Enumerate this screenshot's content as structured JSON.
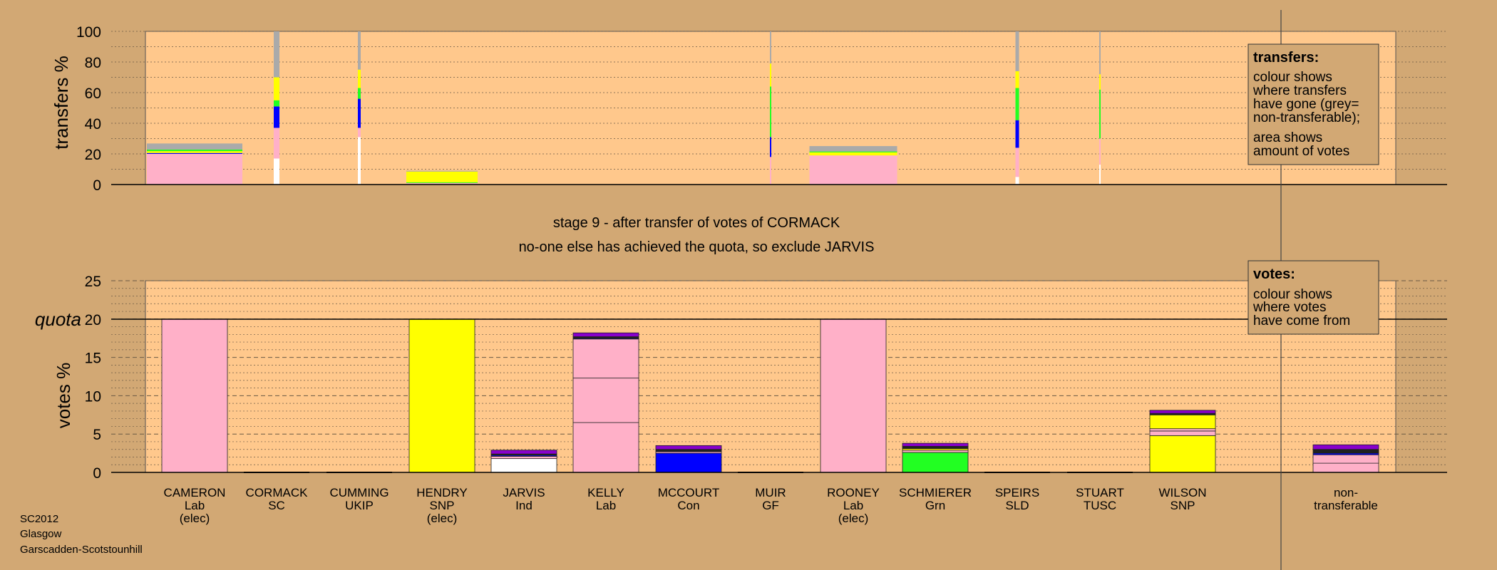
{
  "colors": {
    "background": "#d2a874",
    "panel": "#ffc88c",
    "Lab": "#ffb0c8",
    "SNP": "#ffff00",
    "Ind": "#ffffff",
    "Con": "#0000ff",
    "Grn": "#22ff22",
    "UKIP": "#8800cc",
    "LD": "#202020",
    "nontransferable": "#aaaaaa"
  },
  "header": {
    "stage": "stage 9 - after transfer of votes of CORMACK",
    "note": "no-one else has achieved the quota, so exclude JARVIS"
  },
  "footer": {
    "line1": "SC2012",
    "line2": "Glasgow",
    "line3": "Garscadden-Scotstounhill"
  },
  "legends": {
    "transfers": {
      "title": "transfers:",
      "lines": [
        "colour shows",
        "where transfers",
        "have gone (grey=",
        "non-transferable);",
        "area shows",
        "amount of votes"
      ]
    },
    "votes": {
      "title": "votes:",
      "lines": [
        "colour shows",
        "where votes",
        "have come from"
      ]
    }
  },
  "chart_data": [
    {
      "type": "bar",
      "ylabel": "transfers %",
      "ylim": [
        0,
        100
      ],
      "yticks": [
        0,
        20,
        40,
        60,
        80,
        100
      ],
      "grid": true,
      "stacked": true,
      "candidates": [
        {
          "name": "CAMERON",
          "segments": [
            {
              "color": "Lab",
              "value": 20
            },
            {
              "color": "Con",
              "value": 0.6
            },
            {
              "color": "SNP",
              "value": 1.2
            },
            {
              "color": "Grn",
              "value": 1
            },
            {
              "color": "nontransferable",
              "value": 4
            }
          ]
        },
        {
          "name": "CORMACK",
          "segments": [
            {
              "color": "Ind",
              "value": 17
            },
            {
              "color": "Lab",
              "value": 20
            },
            {
              "color": "Con",
              "value": 14
            },
            {
              "color": "Grn",
              "value": 4
            },
            {
              "color": "SNP",
              "value": 15
            },
            {
              "color": "nontransferable",
              "value": 30
            }
          ]
        },
        {
          "name": "CUMMING",
          "segments": [
            {
              "color": "Ind",
              "value": 31
            },
            {
              "color": "Lab",
              "value": 6
            },
            {
              "color": "Con",
              "value": 19
            },
            {
              "color": "Grn",
              "value": 7
            },
            {
              "color": "SNP",
              "value": 12
            },
            {
              "color": "nontransferable",
              "value": 25
            }
          ]
        },
        {
          "name": "HENDRY",
          "segments": [
            {
              "color": "Lab",
              "value": 1
            },
            {
              "color": "Grn",
              "value": 0.5
            },
            {
              "color": "SNP",
              "value": 7
            },
            {
              "color": "nontransferable",
              "value": 0.5
            }
          ]
        },
        {
          "name": "JARVIS",
          "segments": []
        },
        {
          "name": "KELLY",
          "segments": []
        },
        {
          "name": "MCCOURT",
          "segments": []
        },
        {
          "name": "MUIR",
          "segments": [
            {
              "color": "Lab",
              "value": 18
            },
            {
              "color": "Con",
              "value": 13
            },
            {
              "color": "Grn",
              "value": 33
            },
            {
              "color": "SNP",
              "value": 15
            },
            {
              "color": "nontransferable",
              "value": 21
            }
          ]
        },
        {
          "name": "ROONEY",
          "segments": [
            {
              "color": "Lab",
              "value": 19
            },
            {
              "color": "SNP",
              "value": 2
            },
            {
              "color": "Grn",
              "value": 0.6
            },
            {
              "color": "nontransferable",
              "value": 3.5
            }
          ]
        },
        {
          "name": "SCHMIERER",
          "segments": []
        },
        {
          "name": "SPEIRS",
          "segments": [
            {
              "color": "Ind",
              "value": 5
            },
            {
              "color": "Lab",
              "value": 19
            },
            {
              "color": "Con",
              "value": 18
            },
            {
              "color": "Grn",
              "value": 21
            },
            {
              "color": "SNP",
              "value": 11
            },
            {
              "color": "nontransferable",
              "value": 26
            }
          ]
        },
        {
          "name": "STUART",
          "segments": [
            {
              "color": "Ind",
              "value": 13
            },
            {
              "color": "Lab",
              "value": 17
            },
            {
              "color": "Grn",
              "value": 32
            },
            {
              "color": "SNP",
              "value": 10
            },
            {
              "color": "nontransferable",
              "value": 28
            }
          ]
        },
        {
          "name": "WILSON",
          "segments": []
        }
      ]
    },
    {
      "type": "bar",
      "ylabel": "votes %",
      "ylim": [
        0,
        25
      ],
      "yticks": [
        0,
        5,
        10,
        15,
        20,
        25
      ],
      "quota_label": "quota",
      "quota": 20,
      "grid": true,
      "stacked": true,
      "candidates": [
        {
          "name": "CAMERON",
          "party": "Lab",
          "status": "(elec)",
          "segments": [
            {
              "color": "Lab",
              "value": 20
            }
          ]
        },
        {
          "name": "CORMACK",
          "party": "SC",
          "status": "",
          "segments": []
        },
        {
          "name": "CUMMING",
          "party": "UKIP",
          "status": "",
          "segments": []
        },
        {
          "name": "HENDRY",
          "party": "SNP",
          "status": "(elec)",
          "segments": [
            {
              "color": "SNP",
              "value": 20
            }
          ]
        },
        {
          "name": "JARVIS",
          "party": "Ind",
          "status": "",
          "segments": [
            {
              "color": "Ind",
              "value": 1.8
            },
            {
              "color": "Lab",
              "value": 0.3
            },
            {
              "color": "Con",
              "value": 0.15
            },
            {
              "color": "LD",
              "value": 0.15
            },
            {
              "color": "UKIP",
              "value": 0.5
            }
          ]
        },
        {
          "name": "KELLY",
          "party": "Lab",
          "status": "",
          "segments": [
            {
              "color": "Lab",
              "value": 6.5
            },
            {
              "color": "Lab",
              "value": 5.8
            },
            {
              "color": "Lab",
              "value": 5.1
            },
            {
              "color": "Con",
              "value": 0.1
            },
            {
              "color": "LD",
              "value": 0.2
            },
            {
              "color": "UKIP",
              "value": 0.5
            }
          ]
        },
        {
          "name": "MCCOURT",
          "party": "Con",
          "status": "",
          "segments": [
            {
              "color": "Con",
              "value": 2.5
            },
            {
              "color": "Lab",
              "value": 0.2
            },
            {
              "color": "LD",
              "value": 0.3
            },
            {
              "color": "UKIP",
              "value": 0.5
            }
          ]
        },
        {
          "name": "MUIR",
          "party": "GF",
          "status": "",
          "segments": []
        },
        {
          "name": "ROONEY",
          "party": "Lab",
          "status": "(elec)",
          "segments": [
            {
              "color": "Lab",
              "value": 20
            }
          ]
        },
        {
          "name": "SCHMIERER",
          "party": "Grn",
          "status": "",
          "segments": [
            {
              "color": "Grn",
              "value": 2.6
            },
            {
              "color": "Lab",
              "value": 0.3
            },
            {
              "color": "SNP",
              "value": 0.2
            },
            {
              "color": "LD",
              "value": 0.3
            },
            {
              "color": "UKIP",
              "value": 0.4
            }
          ]
        },
        {
          "name": "SPEIRS",
          "party": "SLD",
          "status": "",
          "segments": []
        },
        {
          "name": "STUART",
          "party": "TUSC",
          "status": "",
          "segments": []
        },
        {
          "name": "WILSON",
          "party": "SNP",
          "status": "",
          "segments": [
            {
              "color": "SNP",
              "value": 4.8
            },
            {
              "color": "Lab",
              "value": 0.6
            },
            {
              "color": "Lab",
              "value": 0.3
            },
            {
              "color": "SNP",
              "value": 1.8
            },
            {
              "color": "LD",
              "value": 0.2
            },
            {
              "color": "UKIP",
              "value": 0.4
            }
          ]
        },
        {
          "name": "non-",
          "party": "transferable",
          "status": "",
          "segments": [
            {
              "color": "Lab",
              "value": 1.2
            },
            {
              "color": "Lab",
              "value": 1.1
            },
            {
              "color": "Con",
              "value": 0.2
            },
            {
              "color": "LD",
              "value": 0.5
            },
            {
              "color": "UKIP",
              "value": 0.6
            }
          ]
        }
      ]
    }
  ]
}
